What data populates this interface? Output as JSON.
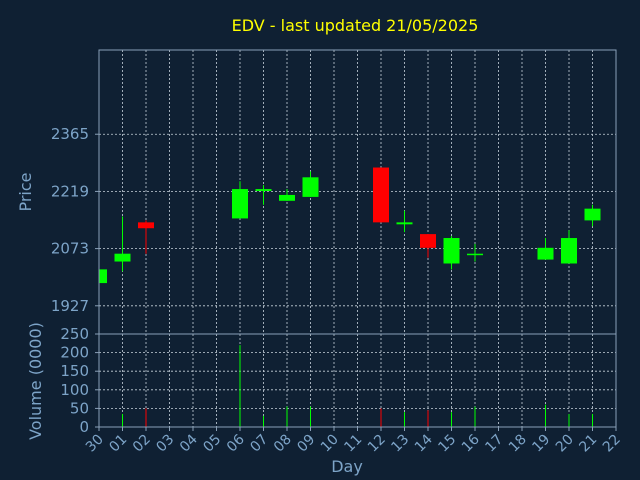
{
  "chart_data": {
    "type": "candlestick",
    "title": "EDV - last updated 21/05/2025",
    "xlabel": "Day",
    "price_panel": {
      "ylabel": "Price",
      "ylim": [
        1855,
        2580
      ],
      "yticks": [
        "1927",
        "2073",
        "2219",
        "2365"
      ],
      "grid": true
    },
    "volume_panel": {
      "ylabel": "Volume (0000)",
      "ylim": [
        0,
        250
      ],
      "yticks": [
        "0",
        "50",
        "100",
        "150",
        "200",
        "250"
      ],
      "grid": true
    },
    "x_ticks": [
      "30",
      "01",
      "02",
      "03",
      "04",
      "05",
      "06",
      "07",
      "08",
      "09",
      "10",
      "11",
      "12",
      "13",
      "14",
      "15",
      "16",
      "17",
      "18",
      "19",
      "20",
      "21",
      "22"
    ],
    "candles": [
      {
        "day": "30",
        "open": 1985,
        "high": 2020,
        "low": 1985,
        "close": 2020,
        "volume": 0
      },
      {
        "day": "01",
        "open": 2040,
        "high": 2155,
        "low": 2015,
        "close": 2060,
        "volume": 35
      },
      {
        "day": "02",
        "open": 2140,
        "high": 2145,
        "low": 2060,
        "close": 2125,
        "volume": 50
      },
      {
        "day": "06",
        "open": 2150,
        "high": 2245,
        "low": 2150,
        "close": 2225,
        "volume": 220
      },
      {
        "day": "07",
        "open": 2220,
        "high": 2235,
        "low": 2185,
        "close": 2225,
        "volume": 30
      },
      {
        "day": "08",
        "open": 2195,
        "high": 2225,
        "low": 2195,
        "close": 2210,
        "volume": 55
      },
      {
        "day": "09",
        "open": 2205,
        "high": 2270,
        "low": 2205,
        "close": 2255,
        "volume": 55
      },
      {
        "day": "12",
        "open": 2280,
        "high": 2280,
        "low": 2140,
        "close": 2140,
        "volume": 50
      },
      {
        "day": "13",
        "open": 2135,
        "high": 2170,
        "low": 2115,
        "close": 2140,
        "volume": 40
      },
      {
        "day": "14",
        "open": 2110,
        "high": 2110,
        "low": 2050,
        "close": 2075,
        "volume": 45
      },
      {
        "day": "15",
        "open": 2035,
        "high": 2105,
        "low": 2020,
        "close": 2100,
        "volume": 40
      },
      {
        "day": "16",
        "open": 2060,
        "high": 2085,
        "low": 2040,
        "close": 2060,
        "volume": 55
      },
      {
        "day": "19",
        "open": 2045,
        "high": 2100,
        "low": 2045,
        "close": 2075,
        "volume": 60
      },
      {
        "day": "20",
        "open": 2035,
        "high": 2120,
        "low": 2035,
        "close": 2100,
        "volume": 35
      },
      {
        "day": "21",
        "open": 2145,
        "high": 2185,
        "low": 2130,
        "close": 2175,
        "volume": 35
      }
    ],
    "colors": {
      "background": "#0f2033",
      "title": "#ffff00",
      "axis_text": "#7da4c8",
      "frame": "#8aa0b8",
      "grid": "#c8d2dc",
      "up": "#00ff00",
      "down": "#ff0000"
    }
  }
}
